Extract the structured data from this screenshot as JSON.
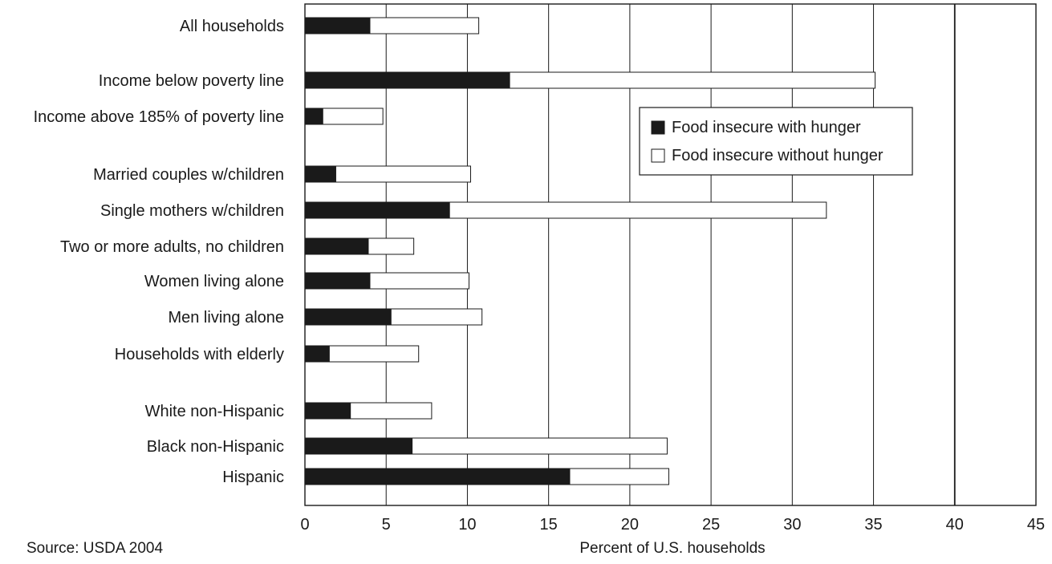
{
  "chart_data": {
    "type": "bar",
    "orientation": "horizontal",
    "stacked": true,
    "categories": [
      "All households",
      "Income below poverty line",
      "Income above 185% of poverty line",
      "Married couples w/children",
      "Single mothers w/children",
      "Two or more adults, no children",
      "Women living alone",
      "Men living alone",
      "Households with elderly",
      "White non-Hispanic",
      "Black non-Hispanic",
      "Hispanic"
    ],
    "series": [
      {
        "name": "Food insecure with hunger",
        "color": "#1a1a1a",
        "values": [
          4.0,
          12.6,
          1.1,
          1.9,
          8.9,
          3.9,
          4.0,
          5.3,
          1.5,
          2.8,
          6.6,
          16.3
        ]
      },
      {
        "name": "Food insecure without hunger",
        "color": "#ffffff",
        "values": [
          6.7,
          22.5,
          3.7,
          8.3,
          23.2,
          2.8,
          6.1,
          5.6,
          5.5,
          5.0,
          15.7,
          6.1
        ]
      }
    ],
    "xlabel": "Percent of U.S. households",
    "xlim": [
      0,
      45
    ],
    "xticks": [
      0,
      5,
      10,
      15,
      20,
      25,
      30,
      35,
      40,
      45
    ],
    "grid": "vertical",
    "legend_position": "upper-right"
  },
  "source_note": "Source: USDA 2004"
}
